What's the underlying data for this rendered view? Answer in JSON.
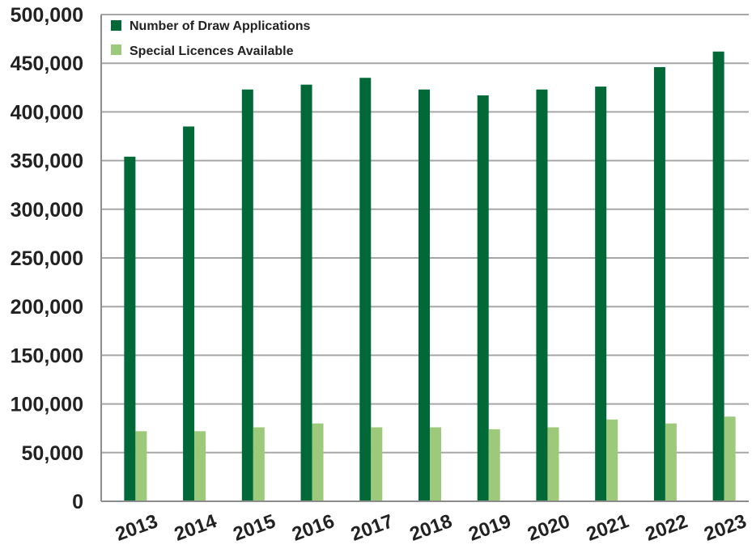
{
  "chart_data": {
    "type": "bar",
    "title": "",
    "xlabel": "",
    "ylabel": "",
    "categories": [
      "2013",
      "2014",
      "2015",
      "2016",
      "2017",
      "2018",
      "2019",
      "2020",
      "2021",
      "2022",
      "2023"
    ],
    "series": [
      {
        "name": "Number of Draw Applications",
        "color": "#006937",
        "values": [
          354000,
          385000,
          423000,
          428000,
          435000,
          423000,
          417000,
          423000,
          426000,
          446000,
          462000
        ]
      },
      {
        "name": "Special Licences Available",
        "color": "#9cc97a",
        "values": [
          72000,
          72000,
          76000,
          80000,
          76000,
          76000,
          74000,
          76000,
          84000,
          80000,
          87000
        ]
      }
    ],
    "ylim": [
      0,
      500000
    ],
    "yticks": [
      "0",
      "50,000",
      "100,000",
      "150,000",
      "200,000",
      "250,000",
      "300,000",
      "350,000",
      "400,000",
      "450,000",
      "500,000"
    ],
    "grid": true,
    "legend_position": "top-left"
  },
  "colors": {
    "gridline": "#a6a6a6",
    "axis": "#8c8c8c",
    "text": "#222222"
  }
}
